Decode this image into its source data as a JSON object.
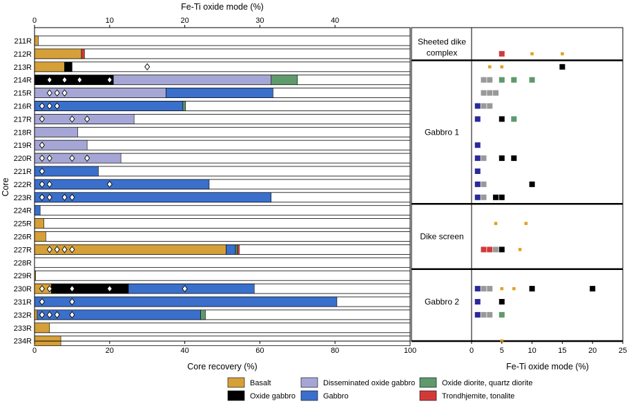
{
  "colors": {
    "basalt": "#D6A038",
    "oxide_gabbro": "#000000",
    "diss_oxide_gabbro": "#A6A6D6",
    "gabbro": "#3A6FCB",
    "oxide_diorite": "#5E9A6C",
    "trondhjemite": "#D23A3A",
    "fe_basalt": "#E0A020",
    "fe_gabbro": "#2A2A9A",
    "fe_diss": "#999999"
  },
  "chart_data": [
    {
      "type": "bar",
      "orientation": "horizontal-stacked",
      "title": "Fe-Ti oxide mode (%)",
      "xlabel": "Core recovery (%)",
      "ylabel": "Core",
      "xlim": [
        0,
        100
      ],
      "top_xlim": [
        0,
        50
      ],
      "x_ticks": [
        "0",
        "20",
        "40",
        "60",
        "80",
        "100"
      ],
      "top_ticks": [
        "0",
        "10",
        "20",
        "30",
        "40"
      ],
      "categories": [
        "211R",
        "212R",
        "213R",
        "214R",
        "215R",
        "216R",
        "217R",
        "218R",
        "219R",
        "220R",
        "221R",
        "222R",
        "223R",
        "224R",
        "225R",
        "226R",
        "227R",
        "228R",
        "229R",
        "230R",
        "231R",
        "232R",
        "233R",
        "234R"
      ],
      "rows": [
        {
          "segments": [
            [
              "basalt",
              1
            ]
          ],
          "oxide_modes": []
        },
        {
          "segments": [
            [
              "basalt",
              12.5
            ],
            [
              "trondhjemite",
              0.8
            ]
          ],
          "oxide_modes": []
        },
        {
          "segments": [
            [
              "basalt",
              8
            ],
            [
              "oxide_gabbro",
              2
            ]
          ],
          "oxide_modes": [
            15
          ]
        },
        {
          "segments": [
            [
              "oxide_gabbro",
              21
            ],
            [
              "diss_oxide_gabbro",
              42
            ],
            [
              "oxide_diorite",
              7
            ]
          ],
          "oxide_modes": [
            2,
            4,
            6,
            10
          ]
        },
        {
          "segments": [
            [
              "diss_oxide_gabbro",
              35
            ],
            [
              "gabbro",
              28.5
            ]
          ],
          "oxide_modes": [
            2,
            3,
            4
          ]
        },
        {
          "segments": [
            [
              "gabbro",
              39.5
            ],
            [
              "oxide_diorite",
              0.7
            ]
          ],
          "oxide_modes": [
            1,
            2,
            3
          ]
        },
        {
          "segments": [
            [
              "diss_oxide_gabbro",
              26.5
            ]
          ],
          "oxide_modes": [
            1,
            5,
            7
          ]
        },
        {
          "segments": [
            [
              "diss_oxide_gabbro",
              11.5
            ]
          ],
          "oxide_modes": []
        },
        {
          "segments": [
            [
              "diss_oxide_gabbro",
              14
            ]
          ],
          "oxide_modes": [
            1
          ]
        },
        {
          "segments": [
            [
              "diss_oxide_gabbro",
              23
            ]
          ],
          "oxide_modes": [
            1,
            2,
            5,
            7
          ]
        },
        {
          "segments": [
            [
              "gabbro",
              17
            ]
          ],
          "oxide_modes": [
            1
          ]
        },
        {
          "segments": [
            [
              "gabbro",
              46.5
            ]
          ],
          "oxide_modes": [
            1,
            2,
            10
          ]
        },
        {
          "segments": [
            [
              "gabbro",
              63
            ]
          ],
          "oxide_modes": [
            1,
            2,
            4,
            5
          ]
        },
        {
          "segments": [
            [
              "gabbro",
              1.5
            ]
          ],
          "oxide_modes": []
        },
        {
          "segments": [
            [
              "basalt",
              2.5
            ]
          ],
          "oxide_modes": []
        },
        {
          "segments": [
            [
              "basalt",
              3
            ]
          ],
          "oxide_modes": []
        },
        {
          "segments": [
            [
              "basalt",
              51
            ],
            [
              "gabbro",
              2.5
            ],
            [
              "oxide_diorite",
              0.5
            ],
            [
              "trondhjemite",
              0.5
            ]
          ],
          "oxide_modes": [
            2,
            3,
            4,
            5
          ]
        },
        {
          "segments": [],
          "oxide_modes": []
        },
        {
          "segments": [
            [
              "basalt",
              0.3
            ]
          ],
          "oxide_modes": []
        },
        {
          "segments": [
            [
              "basalt",
              4.5
            ],
            [
              "oxide_gabbro",
              20.5
            ],
            [
              "gabbro",
              33.5
            ]
          ],
          "oxide_modes": [
            1,
            2,
            5,
            10,
            20
          ]
        },
        {
          "segments": [
            [
              "gabbro",
              80.5
            ]
          ],
          "oxide_modes": [
            1,
            5
          ]
        },
        {
          "segments": [
            [
              "basalt",
              0.7
            ],
            [
              "gabbro",
              43.5
            ],
            [
              "oxide_diorite",
              1.3
            ]
          ],
          "oxide_modes": [
            1,
            2,
            3,
            5
          ]
        },
        {
          "segments": [
            [
              "basalt",
              4
            ]
          ],
          "oxide_modes": []
        },
        {
          "segments": [
            [
              "basalt",
              7
            ]
          ],
          "oxide_modes": []
        }
      ]
    },
    {
      "type": "scatter",
      "xlabel": "Fe-Ti oxide mode (%)",
      "xlim": [
        0,
        25
      ],
      "x_ticks": [
        "0",
        "5",
        "10",
        "15",
        "20",
        "25"
      ],
      "units": [
        {
          "label": "Sheeted dike complex",
          "from": -0.5,
          "to": 1.5
        },
        {
          "label": "Gabbro 1",
          "from": 1.5,
          "to": 12.5
        },
        {
          "label": "Dike screen",
          "from": 12.5,
          "to": 17.5
        },
        {
          "label": "Gabbro 2",
          "from": 17.5,
          "to": 22.5
        }
      ],
      "points": [
        {
          "row": 1,
          "x": 5,
          "type": "trondhjemite",
          "size": "L"
        },
        {
          "row": 1,
          "x": 10,
          "type": "basalt",
          "size": "S"
        },
        {
          "row": 1,
          "x": 15,
          "type": "basalt",
          "size": "S"
        },
        {
          "row": 2,
          "x": 3,
          "type": "basalt",
          "size": "S"
        },
        {
          "row": 2,
          "x": 5,
          "type": "basalt",
          "size": "S"
        },
        {
          "row": 2,
          "x": 15,
          "type": "oxide_gabbro",
          "size": "L"
        },
        {
          "row": 3,
          "x": 2,
          "type": "diss_oxide_gabbro",
          "size": "L"
        },
        {
          "row": 3,
          "x": 3,
          "type": "diss_oxide_gabbro",
          "size": "L"
        },
        {
          "row": 3,
          "x": 5,
          "type": "oxide_diorite",
          "size": "L"
        },
        {
          "row": 3,
          "x": 7,
          "type": "oxide_diorite",
          "size": "L"
        },
        {
          "row": 3,
          "x": 10,
          "type": "oxide_diorite",
          "size": "L"
        },
        {
          "row": 4,
          "x": 2,
          "type": "diss_oxide_gabbro",
          "size": "L"
        },
        {
          "row": 4,
          "x": 3,
          "type": "diss_oxide_gabbro",
          "size": "L"
        },
        {
          "row": 4,
          "x": 4,
          "type": "diss_oxide_gabbro",
          "size": "L"
        },
        {
          "row": 5,
          "x": 1,
          "type": "gabbro",
          "size": "L"
        },
        {
          "row": 5,
          "x": 2,
          "type": "diss_oxide_gabbro",
          "size": "L"
        },
        {
          "row": 5,
          "x": 3,
          "type": "diss_oxide_gabbro",
          "size": "L"
        },
        {
          "row": 6,
          "x": 1,
          "type": "gabbro",
          "size": "L"
        },
        {
          "row": 6,
          "x": 5,
          "type": "oxide_gabbro",
          "size": "L"
        },
        {
          "row": 6,
          "x": 7,
          "type": "oxide_diorite",
          "size": "L"
        },
        {
          "row": 8,
          "x": 1,
          "type": "gabbro",
          "size": "L"
        },
        {
          "row": 9,
          "x": 1,
          "type": "gabbro",
          "size": "L"
        },
        {
          "row": 9,
          "x": 2,
          "type": "diss_oxide_gabbro",
          "size": "L"
        },
        {
          "row": 9,
          "x": 5,
          "type": "oxide_gabbro",
          "size": "L"
        },
        {
          "row": 9,
          "x": 7,
          "type": "oxide_gabbro",
          "size": "L"
        },
        {
          "row": 10,
          "x": 1,
          "type": "gabbro",
          "size": "L"
        },
        {
          "row": 11,
          "x": 1,
          "type": "gabbro",
          "size": "L"
        },
        {
          "row": 11,
          "x": 2,
          "type": "diss_oxide_gabbro",
          "size": "L"
        },
        {
          "row": 11,
          "x": 10,
          "type": "oxide_gabbro",
          "size": "L"
        },
        {
          "row": 12,
          "x": 1,
          "type": "gabbro",
          "size": "L"
        },
        {
          "row": 12,
          "x": 2,
          "type": "diss_oxide_gabbro",
          "size": "L"
        },
        {
          "row": 12,
          "x": 4,
          "type": "oxide_gabbro",
          "size": "L"
        },
        {
          "row": 12,
          "x": 5,
          "type": "oxide_gabbro",
          "size": "L"
        },
        {
          "row": 14,
          "x": 4,
          "type": "basalt",
          "size": "S"
        },
        {
          "row": 14,
          "x": 9,
          "type": "basalt",
          "size": "S"
        },
        {
          "row": 16,
          "x": 2,
          "type": "trondhjemite",
          "size": "L"
        },
        {
          "row": 16,
          "x": 3,
          "type": "trondhjemite",
          "size": "L"
        },
        {
          "row": 16,
          "x": 4,
          "type": "diss_oxide_gabbro",
          "size": "L"
        },
        {
          "row": 16,
          "x": 5,
          "type": "oxide_gabbro",
          "size": "L"
        },
        {
          "row": 16,
          "x": 8,
          "type": "basalt",
          "size": "S"
        },
        {
          "row": 19,
          "x": 1,
          "type": "gabbro",
          "size": "L"
        },
        {
          "row": 19,
          "x": 2,
          "type": "diss_oxide_gabbro",
          "size": "L"
        },
        {
          "row": 19,
          "x": 3,
          "type": "diss_oxide_gabbro",
          "size": "L"
        },
        {
          "row": 19,
          "x": 5,
          "type": "basalt",
          "size": "S"
        },
        {
          "row": 19,
          "x": 7,
          "type": "basalt",
          "size": "S"
        },
        {
          "row": 19,
          "x": 10,
          "type": "oxide_gabbro",
          "size": "L"
        },
        {
          "row": 19,
          "x": 20,
          "type": "oxide_gabbro",
          "size": "L"
        },
        {
          "row": 20,
          "x": 1,
          "type": "gabbro",
          "size": "L"
        },
        {
          "row": 20,
          "x": 5,
          "type": "oxide_gabbro",
          "size": "L"
        },
        {
          "row": 21,
          "x": 1,
          "type": "gabbro",
          "size": "L"
        },
        {
          "row": 21,
          "x": 2,
          "type": "diss_oxide_gabbro",
          "size": "L"
        },
        {
          "row": 21,
          "x": 3,
          "type": "diss_oxide_gabbro",
          "size": "L"
        },
        {
          "row": 21,
          "x": 5,
          "type": "oxide_diorite",
          "size": "L"
        },
        {
          "row": 23,
          "x": 5,
          "type": "basalt",
          "size": "S"
        }
      ]
    }
  ],
  "legend": [
    {
      "key": "basalt",
      "label": "Basalt"
    },
    {
      "key": "oxide_gabbro",
      "label": "Oxide gabbro"
    },
    {
      "key": "diss_oxide_gabbro",
      "label": "Disseminated oxide gabbro"
    },
    {
      "key": "gabbro",
      "label": "Gabbro"
    },
    {
      "key": "oxide_diorite",
      "label": "Oxide diorite, quartz diorite"
    },
    {
      "key": "trondhjemite",
      "label": "Trondhjemite, tonalite"
    }
  ]
}
